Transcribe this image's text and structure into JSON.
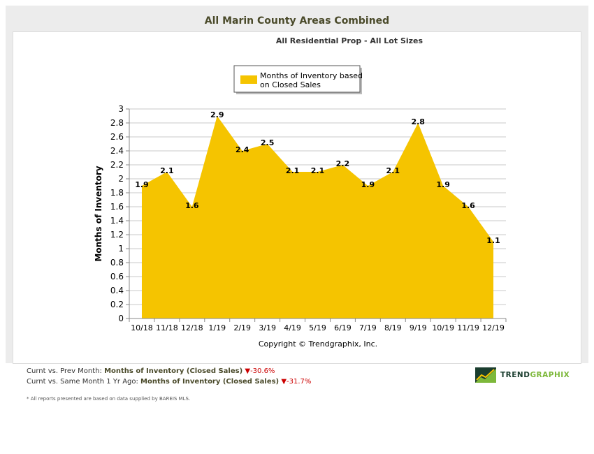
{
  "header": {
    "title": "All Marin County Areas Combined",
    "subtitle": "All Residential Prop - All Lot Sizes"
  },
  "chart_data": {
    "type": "area",
    "title": "All Marin County Areas Combined",
    "subtitle": "All Residential Prop - All Lot Sizes",
    "categories": [
      "10/18",
      "11/18",
      "12/18",
      "1/19",
      "2/19",
      "3/19",
      "4/19",
      "5/19",
      "6/19",
      "7/19",
      "8/19",
      "9/19",
      "10/19",
      "11/19",
      "12/19"
    ],
    "series": [
      {
        "name": "Months of Inventory based on Closed Sales",
        "legend_lines": [
          "Months of Inventory based",
          "on Closed Sales"
        ],
        "color": "#f5c400",
        "values": [
          1.9,
          2.1,
          1.6,
          2.9,
          2.4,
          2.5,
          2.1,
          2.1,
          2.2,
          1.9,
          2.1,
          2.8,
          1.9,
          1.6,
          1.1
        ],
        "labels": [
          "1.9",
          "2.1",
          "1.6",
          "2.9",
          "2.4",
          "2.5",
          "2.1",
          "2.1",
          "2.2",
          "1.9",
          "2.1",
          "2.8",
          "1.9",
          "1.6",
          "1.1"
        ]
      }
    ],
    "ylabel": "Months of Inventory",
    "xlabel": "",
    "ylim": [
      0,
      3
    ],
    "yticks": [
      "0",
      "0.2",
      "0.4",
      "0.6",
      "0.8",
      "1",
      "1.2",
      "1.4",
      "1.6",
      "1.8",
      "2",
      "2.2",
      "2.4",
      "2.6",
      "2.8",
      "3"
    ],
    "grid": true,
    "legend": "top-center",
    "copyright": "Copyright © Trendgraphix, Inc."
  },
  "stats": [
    {
      "prefix": "Curnt vs. Prev Month: ",
      "metric": "Months of Inventory (Closed Sales)",
      "arrow": "▼",
      "change": "-30.6%"
    },
    {
      "prefix": "Curnt vs. Same Month 1 Yr Ago: ",
      "metric": "Months of Inventory (Closed Sales)",
      "arrow": "▼",
      "change": "-31.7%"
    }
  ],
  "footnote": "* All reports presented are based on data supplied by BAREIS MLS.",
  "logo": {
    "part1": "TREND",
    "part2": "GRAPHIX",
    "color1": "#1a3d2e",
    "color2": "#7db83a"
  }
}
